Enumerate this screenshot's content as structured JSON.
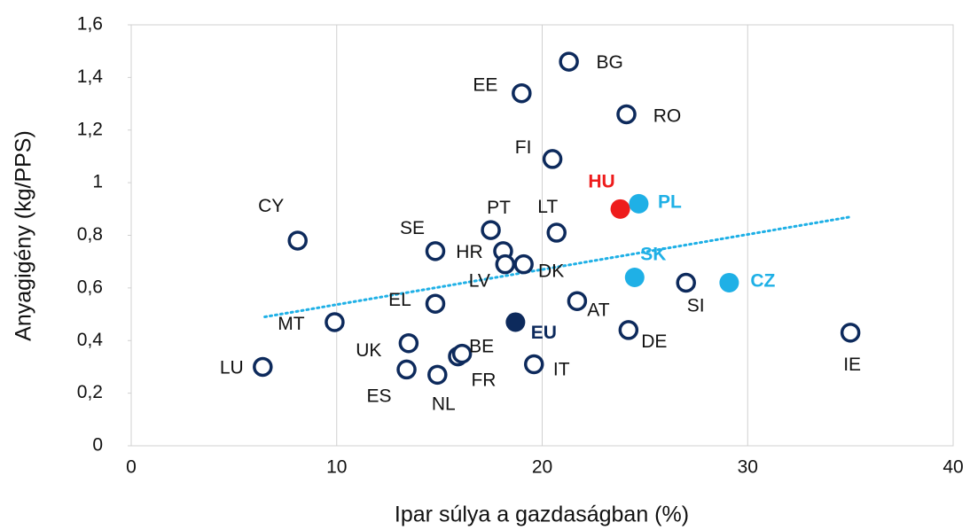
{
  "chart_data": {
    "type": "scatter",
    "x_label": "Ipar súlya a gazdaságban (%)",
    "y_label": "Anyagigény (kg/PPS)",
    "xlim": [
      0,
      40
    ],
    "xticks": [
      0,
      10,
      20,
      30,
      40
    ],
    "ylim": [
      0,
      1.6
    ],
    "yticks": [
      0,
      {
        "value": 0.2,
        "label": "0,2"
      },
      {
        "value": 0.4,
        "label": "0,4"
      },
      {
        "value": 0.6,
        "label": "0,6"
      },
      {
        "value": 0.8,
        "label": "0,8"
      },
      1,
      {
        "value": 1.2,
        "label": "1,2"
      },
      {
        "value": 1.4,
        "label": "1,4"
      },
      {
        "value": 1.6,
        "label": "1,6"
      }
    ],
    "grid": "vertical",
    "points": [
      {
        "label": "LU",
        "x": 6.4,
        "y": 0.3,
        "color": "#0d2a5c",
        "filled": false
      },
      {
        "label": "MT",
        "x": 9.9,
        "y": 0.47,
        "color": "#0d2a5c",
        "filled": false
      },
      {
        "label": "CY",
        "x": 8.1,
        "y": 0.78,
        "color": "#0d2a5c",
        "filled": false
      },
      {
        "label": "UK",
        "x": 13.5,
        "y": 0.39,
        "color": "#0d2a5c",
        "filled": false
      },
      {
        "label": "ES",
        "x": 13.4,
        "y": 0.29,
        "color": "#0d2a5c",
        "filled": false
      },
      {
        "label": "NL",
        "x": 14.9,
        "y": 0.27,
        "color": "#0d2a5c",
        "filled": false
      },
      {
        "label": "EL",
        "x": 14.8,
        "y": 0.54,
        "color": "#0d2a5c",
        "filled": false
      },
      {
        "label": "SE",
        "x": 14.8,
        "y": 0.74,
        "color": "#0d2a5c",
        "filled": false
      },
      {
        "label": "FR",
        "x": 15.9,
        "y": 0.34,
        "color": "#0d2a5c",
        "filled": false
      },
      {
        "label": "BE",
        "x": 16.1,
        "y": 0.35,
        "color": "#0d2a5c",
        "filled": false
      },
      {
        "label": "PT",
        "x": 17.5,
        "y": 0.82,
        "color": "#0d2a5c",
        "filled": false
      },
      {
        "label": "HR",
        "x": 18.1,
        "y": 0.74,
        "color": "#0d2a5c",
        "filled": false
      },
      {
        "label": "LV",
        "x": 18.2,
        "y": 0.69,
        "color": "#0d2a5c",
        "filled": false
      },
      {
        "label": "DK",
        "x": 19.1,
        "y": 0.69,
        "color": "#0d2a5c",
        "filled": false
      },
      {
        "label": "EU",
        "x": 18.7,
        "y": 0.47,
        "color": "#0d2a5c",
        "filled": true
      },
      {
        "label": "IT",
        "x": 19.6,
        "y": 0.31,
        "color": "#0d2a5c",
        "filled": false
      },
      {
        "label": "LT",
        "x": 20.7,
        "y": 0.81,
        "color": "#0d2a5c",
        "filled": false
      },
      {
        "label": "FI",
        "x": 20.5,
        "y": 1.09,
        "color": "#0d2a5c",
        "filled": false
      },
      {
        "label": "EE",
        "x": 19.0,
        "y": 1.34,
        "color": "#0d2a5c",
        "filled": false
      },
      {
        "label": "BG",
        "x": 21.3,
        "y": 1.46,
        "color": "#0d2a5c",
        "filled": false
      },
      {
        "label": "AT",
        "x": 21.7,
        "y": 0.55,
        "color": "#0d2a5c",
        "filled": false
      },
      {
        "label": "HU",
        "x": 23.8,
        "y": 0.9,
        "color": "#ee1c1c",
        "filled": true
      },
      {
        "label": "PL",
        "x": 24.7,
        "y": 0.92,
        "color": "#1fb0e6",
        "filled": true
      },
      {
        "label": "RO",
        "x": 24.1,
        "y": 1.26,
        "color": "#0d2a5c",
        "filled": false
      },
      {
        "label": "DE",
        "x": 24.2,
        "y": 0.44,
        "color": "#0d2a5c",
        "filled": false
      },
      {
        "label": "SK",
        "x": 24.5,
        "y": 0.64,
        "color": "#1fb0e6",
        "filled": true
      },
      {
        "label": "SI",
        "x": 27.0,
        "y": 0.62,
        "color": "#0d2a5c",
        "filled": false
      },
      {
        "label": "CZ",
        "x": 29.1,
        "y": 0.62,
        "color": "#1fb0e6",
        "filled": true
      },
      {
        "label": "IE",
        "x": 35.0,
        "y": 0.43,
        "color": "#0d2a5c",
        "filled": false
      }
    ],
    "trendline": {
      "x": [
        6.5,
        35
      ],
      "y": [
        0.49,
        0.87
      ],
      "color": "#1fb0e6"
    }
  }
}
